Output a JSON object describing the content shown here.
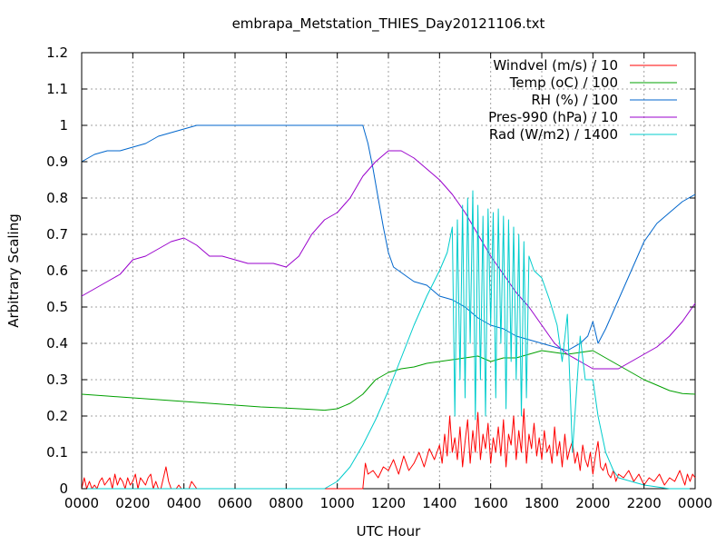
{
  "chart_data": {
    "type": "line",
    "title": "embrapa_Metstation_THIES_Day20121106.txt",
    "xlabel": "UTC Hour",
    "ylabel": "Arbitrary Scaling",
    "xlim": [
      0,
      24
    ],
    "ylim": [
      0,
      1.2
    ],
    "grid": true,
    "legend_position": "top-right",
    "x_ticks": [
      {
        "value": 0,
        "label": "0000"
      },
      {
        "value": 2,
        "label": "0200"
      },
      {
        "value": 4,
        "label": "0400"
      },
      {
        "value": 6,
        "label": "0600"
      },
      {
        "value": 8,
        "label": "0800"
      },
      {
        "value": 10,
        "label": "1000"
      },
      {
        "value": 12,
        "label": "1200"
      },
      {
        "value": 14,
        "label": "1400"
      },
      {
        "value": 16,
        "label": "1600"
      },
      {
        "value": 18,
        "label": "1800"
      },
      {
        "value": 20,
        "label": "2000"
      },
      {
        "value": 22,
        "label": "2200"
      },
      {
        "value": 24,
        "label": "0000"
      }
    ],
    "y_ticks": [
      {
        "value": 0,
        "label": "0"
      },
      {
        "value": 0.1,
        "label": "0.1"
      },
      {
        "value": 0.2,
        "label": "0.2"
      },
      {
        "value": 0.3,
        "label": "0.3"
      },
      {
        "value": 0.4,
        "label": "0.4"
      },
      {
        "value": 0.5,
        "label": "0.5"
      },
      {
        "value": 0.6,
        "label": "0.6"
      },
      {
        "value": 0.7,
        "label": "0.7"
      },
      {
        "value": 0.8,
        "label": "0.8"
      },
      {
        "value": 0.9,
        "label": "0.9"
      },
      {
        "value": 1.0,
        "label": "1"
      },
      {
        "value": 1.1,
        "label": "1.1"
      },
      {
        "value": 1.2,
        "label": "1.2"
      }
    ],
    "series": [
      {
        "name": "Windvel (m/s) / 10",
        "color": "#ff0000",
        "x": [
          0,
          0.1,
          0.2,
          0.3,
          0.4,
          0.5,
          0.6,
          0.7,
          0.8,
          0.9,
          1.0,
          1.1,
          1.2,
          1.3,
          1.4,
          1.5,
          1.6,
          1.7,
          1.8,
          1.9,
          2.0,
          2.1,
          2.2,
          2.3,
          2.4,
          2.5,
          2.6,
          2.7,
          2.8,
          2.9,
          3.0,
          3.1,
          3.2,
          3.3,
          3.4,
          3.5,
          3.6,
          3.7,
          3.8,
          3.9,
          4.0,
          4.1,
          4.2,
          4.3,
          4.5,
          11.0,
          11.1,
          11.2,
          11.4,
          11.6,
          11.8,
          12.0,
          12.2,
          12.4,
          12.6,
          12.8,
          13.0,
          13.2,
          13.4,
          13.6,
          13.8,
          14.0,
          14.1,
          14.2,
          14.3,
          14.4,
          14.5,
          14.6,
          14.7,
          14.8,
          14.9,
          15.0,
          15.1,
          15.2,
          15.3,
          15.4,
          15.5,
          15.6,
          15.7,
          15.8,
          15.9,
          16.0,
          16.1,
          16.2,
          16.3,
          16.4,
          16.5,
          16.6,
          16.7,
          16.8,
          16.9,
          17.0,
          17.1,
          17.2,
          17.3,
          17.4,
          17.5,
          17.6,
          17.7,
          17.8,
          17.9,
          18.0,
          18.1,
          18.2,
          18.3,
          18.4,
          18.5,
          18.6,
          18.7,
          18.8,
          18.9,
          19.0,
          19.1,
          19.2,
          19.3,
          19.4,
          19.5,
          19.6,
          19.7,
          19.8,
          19.9,
          20.0,
          20.1,
          20.2,
          20.3,
          20.4,
          20.5,
          20.6,
          20.7,
          20.8,
          20.9,
          21.0,
          21.2,
          21.4,
          21.6,
          21.8,
          22.0,
          22.2,
          22.4,
          22.6,
          22.8,
          23.0,
          23.2,
          23.4,
          23.5,
          23.6,
          23.7,
          23.8,
          23.9,
          24.0
        ],
        "values": [
          0,
          0.03,
          0,
          0.02,
          0,
          0.01,
          0,
          0.02,
          0.03,
          0.01,
          0.02,
          0.03,
          0,
          0.04,
          0.01,
          0.03,
          0.02,
          0,
          0.03,
          0.01,
          0.02,
          0.04,
          0,
          0.03,
          0.02,
          0.01,
          0.03,
          0.04,
          0,
          0.02,
          0,
          0,
          0.03,
          0.06,
          0.02,
          0,
          0,
          0,
          0.01,
          0,
          0,
          0,
          0,
          0.02,
          0,
          0,
          0.07,
          0.04,
          0.05,
          0.03,
          0.06,
          0.05,
          0.08,
          0.04,
          0.09,
          0.05,
          0.07,
          0.1,
          0.06,
          0.11,
          0.08,
          0.12,
          0.07,
          0.15,
          0.09,
          0.2,
          0.1,
          0.14,
          0.08,
          0.17,
          0.06,
          0.13,
          0.19,
          0.07,
          0.16,
          0.1,
          0.21,
          0.08,
          0.15,
          0.11,
          0.18,
          0.07,
          0.14,
          0.1,
          0.17,
          0.09,
          0.19,
          0.06,
          0.15,
          0.12,
          0.2,
          0.08,
          0.16,
          0.1,
          0.22,
          0.07,
          0.15,
          0.11,
          0.18,
          0.09,
          0.14,
          0.08,
          0.16,
          0.1,
          0.12,
          0.07,
          0.17,
          0.09,
          0.13,
          0.06,
          0.15,
          0.08,
          0.11,
          0.13,
          0.07,
          0.1,
          0.05,
          0.12,
          0.08,
          0.06,
          0.1,
          0.04,
          0.09,
          0.13,
          0.06,
          0.05,
          0.07,
          0.04,
          0.03,
          0.05,
          0.02,
          0.04,
          0.03,
          0.05,
          0.02,
          0.04,
          0.01,
          0.03,
          0.02,
          0.04,
          0.01,
          0.03,
          0.02,
          0.05,
          0.03,
          0.01,
          0.04,
          0.02,
          0.04,
          0.03
        ]
      },
      {
        "name": "Temp (oC) / 100",
        "color": "#00a000",
        "x": [
          0,
          1,
          2,
          3,
          4,
          5,
          6,
          7,
          8,
          9,
          9.5,
          10,
          10.5,
          11,
          11.5,
          12,
          12.5,
          13,
          13.5,
          14,
          14.5,
          15,
          15.5,
          16,
          16.5,
          17,
          17.5,
          18,
          18.5,
          19,
          19.5,
          20,
          20.5,
          21,
          21.5,
          22,
          22.5,
          23,
          23.5,
          24
        ],
        "values": [
          0.26,
          0.255,
          0.25,
          0.245,
          0.24,
          0.235,
          0.23,
          0.225,
          0.222,
          0.218,
          0.216,
          0.22,
          0.235,
          0.26,
          0.3,
          0.32,
          0.33,
          0.335,
          0.345,
          0.35,
          0.355,
          0.36,
          0.365,
          0.35,
          0.36,
          0.36,
          0.37,
          0.38,
          0.375,
          0.37,
          0.375,
          0.38,
          0.36,
          0.34,
          0.32,
          0.3,
          0.285,
          0.27,
          0.262,
          0.26
        ]
      },
      {
        "name": "RH (%) / 100",
        "color": "#0066cc",
        "x": [
          0,
          0.5,
          1,
          1.5,
          2,
          2.5,
          3,
          3.5,
          4,
          4.5,
          5,
          6,
          7,
          8,
          9,
          10,
          11,
          11.2,
          11.4,
          11.6,
          11.8,
          12,
          12.2,
          12.4,
          12.6,
          12.8,
          13,
          13.5,
          14,
          14.5,
          15,
          15.5,
          16,
          16.5,
          17,
          17.5,
          18,
          18.5,
          19,
          19.5,
          19.8,
          20,
          20.2,
          20.5,
          21,
          21.5,
          22,
          22.5,
          23,
          23.5,
          24
        ],
        "values": [
          0.9,
          0.92,
          0.93,
          0.93,
          0.94,
          0.95,
          0.97,
          0.98,
          0.99,
          1.0,
          1.0,
          1.0,
          1.0,
          1.0,
          1.0,
          1.0,
          1.0,
          0.95,
          0.88,
          0.8,
          0.72,
          0.65,
          0.61,
          0.6,
          0.59,
          0.58,
          0.57,
          0.56,
          0.53,
          0.52,
          0.5,
          0.47,
          0.45,
          0.44,
          0.42,
          0.41,
          0.4,
          0.39,
          0.38,
          0.4,
          0.42,
          0.46,
          0.4,
          0.44,
          0.52,
          0.6,
          0.68,
          0.73,
          0.76,
          0.79,
          0.81
        ]
      },
      {
        "name": "Pres-990 (hPa) / 10",
        "color": "#9900cc",
        "x": [
          0,
          0.5,
          1,
          1.5,
          2,
          2.5,
          3,
          3.5,
          4,
          4.5,
          5,
          5.5,
          6,
          6.5,
          7,
          7.5,
          8,
          8.5,
          9,
          9.5,
          10,
          10.5,
          11,
          11.5,
          12,
          12.5,
          13,
          13.5,
          14,
          14.5,
          15,
          15.5,
          16,
          16.5,
          17,
          17.5,
          18,
          18.5,
          19,
          19.5,
          20,
          20.5,
          21,
          21.5,
          22,
          22.5,
          23,
          23.5,
          24
        ],
        "values": [
          0.53,
          0.55,
          0.57,
          0.59,
          0.63,
          0.64,
          0.66,
          0.68,
          0.69,
          0.67,
          0.64,
          0.64,
          0.63,
          0.62,
          0.62,
          0.62,
          0.61,
          0.64,
          0.7,
          0.74,
          0.76,
          0.8,
          0.86,
          0.9,
          0.93,
          0.93,
          0.91,
          0.88,
          0.85,
          0.81,
          0.76,
          0.7,
          0.64,
          0.59,
          0.54,
          0.5,
          0.45,
          0.4,
          0.37,
          0.35,
          0.33,
          0.33,
          0.33,
          0.35,
          0.37,
          0.39,
          0.42,
          0.46,
          0.51
        ]
      },
      {
        "name": "Rad (W/m2) / 1400",
        "color": "#00cccc",
        "x": [
          0,
          9.5,
          10,
          10.5,
          11,
          11.5,
          12,
          12.5,
          13,
          13.5,
          14,
          14.3,
          14.5,
          14.6,
          14.7,
          14.8,
          14.9,
          15.0,
          15.1,
          15.2,
          15.3,
          15.4,
          15.5,
          15.6,
          15.7,
          15.8,
          15.9,
          16.0,
          16.1,
          16.2,
          16.3,
          16.4,
          16.5,
          16.6,
          16.7,
          16.8,
          16.9,
          17.0,
          17.1,
          17.2,
          17.3,
          17.4,
          17.5,
          17.7,
          18.0,
          18.3,
          18.6,
          18.8,
          19.0,
          19.2,
          19.5,
          19.7,
          20.0,
          20.2,
          20.5,
          20.8,
          21.0,
          21.5,
          22.0,
          22.5,
          23.0,
          24.0
        ],
        "values": [
          0,
          0,
          0.02,
          0.06,
          0.12,
          0.19,
          0.27,
          0.36,
          0.45,
          0.53,
          0.6,
          0.65,
          0.72,
          0.2,
          0.74,
          0.3,
          0.78,
          0.25,
          0.8,
          0.4,
          0.82,
          0.19,
          0.78,
          0.3,
          0.75,
          0.2,
          0.77,
          0.45,
          0.76,
          0.25,
          0.77,
          0.4,
          0.75,
          0.22,
          0.74,
          0.35,
          0.72,
          0.3,
          0.7,
          0.2,
          0.68,
          0.25,
          0.64,
          0.6,
          0.58,
          0.52,
          0.45,
          0.35,
          0.48,
          0.1,
          0.42,
          0.3,
          0.3,
          0.2,
          0.1,
          0.05,
          0.03,
          0.02,
          0.01,
          0.005,
          0,
          0
        ]
      }
    ]
  }
}
